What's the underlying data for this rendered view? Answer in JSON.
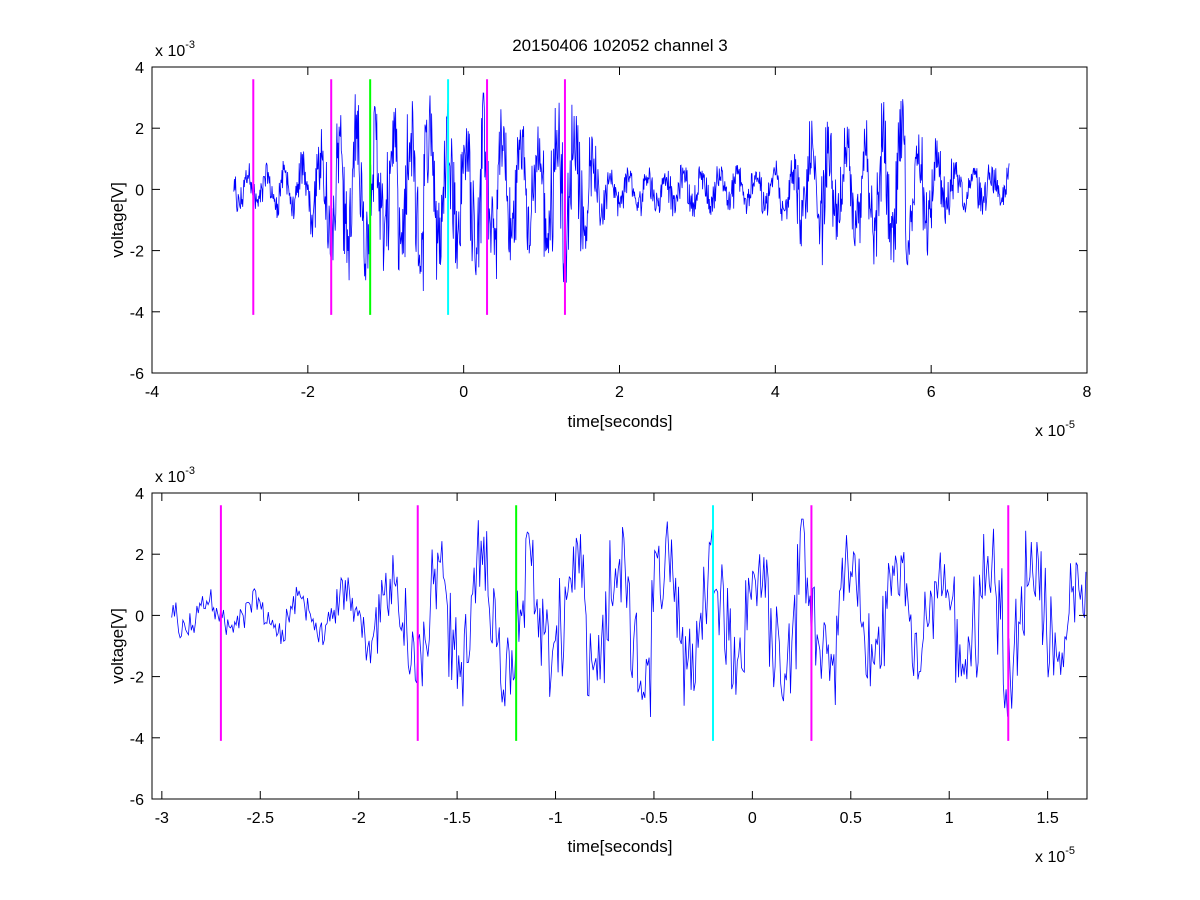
{
  "colors": {
    "signal": "#0000ff",
    "magenta": "#ff00ff",
    "green": "#00ff00",
    "cyan": "#00ffff",
    "axis": "#000000",
    "background": "#ffffff"
  },
  "chart_data": [
    {
      "type": "line",
      "title": "20150406 102052 channel 3",
      "xlabel": "time[seconds]",
      "ylabel": "voltage[V]",
      "x_exponent_label": "x 10",
      "x_exponent": "-5",
      "y_exponent_label": "x 10",
      "y_exponent": "-3",
      "xlim": [
        -4,
        8
      ],
      "ylim": [
        -6,
        4
      ],
      "xticks": [
        -4,
        -2,
        0,
        2,
        4,
        6,
        8
      ],
      "xtick_labels": [
        "-4",
        "-2",
        "0",
        "2",
        "4",
        "6",
        "8"
      ],
      "yticks": [
        -6,
        -4,
        -2,
        0,
        2,
        4
      ],
      "ytick_labels": [
        "-6",
        "-4",
        "-2",
        "0",
        "2",
        "4"
      ],
      "grid": false,
      "signal": {
        "x_range": [
          -2.95,
          7.0
        ],
        "approx_min": -3.7,
        "approx_max": 3.2,
        "note_values": "dense noisy waveform, roughly zero-mean"
      },
      "markers": [
        {
          "x": -2.7,
          "color": "magenta",
          "y_range": [
            -4.1,
            3.6
          ]
        },
        {
          "x": -1.7,
          "color": "magenta",
          "y_range": [
            -4.1,
            3.6
          ]
        },
        {
          "x": -1.2,
          "color": "green",
          "y_range": [
            -4.1,
            3.6
          ]
        },
        {
          "x": -0.2,
          "color": "cyan",
          "y_range": [
            -4.1,
            3.6
          ]
        },
        {
          "x": 0.3,
          "color": "magenta",
          "y_range": [
            -4.1,
            3.6
          ]
        },
        {
          "x": 1.3,
          "color": "magenta",
          "y_range": [
            -4.1,
            3.6
          ]
        }
      ]
    },
    {
      "type": "line",
      "title": "",
      "xlabel": "time[seconds]",
      "ylabel": "voltage[V]",
      "x_exponent_label": "x 10",
      "x_exponent": "-5",
      "y_exponent_label": "x 10",
      "y_exponent": "-3",
      "xlim": [
        -3.05,
        1.7
      ],
      "ylim": [
        -6,
        4
      ],
      "xticks": [
        -3,
        -2.5,
        -2,
        -1.5,
        -1,
        -0.5,
        0,
        0.5,
        1,
        1.5
      ],
      "xtick_labels": [
        "-3",
        "-2.5",
        "-2",
        "-1.5",
        "-1",
        "-0.5",
        "0",
        "0.5",
        "1",
        "1.5"
      ],
      "yticks": [
        -6,
        -4,
        -2,
        0,
        2,
        4
      ],
      "ytick_labels": [
        "-6",
        "-4",
        "-2",
        "0",
        "2",
        "4"
      ],
      "grid": false,
      "signal": {
        "x_range": [
          -2.95,
          1.7
        ],
        "approx_min": -3.7,
        "approx_max": 3.2,
        "note_values": "zoomed view of the same waveform"
      },
      "markers": [
        {
          "x": -2.7,
          "color": "magenta",
          "y_range": [
            -4.1,
            3.6
          ]
        },
        {
          "x": -1.7,
          "color": "magenta",
          "y_range": [
            -4.1,
            3.6
          ]
        },
        {
          "x": -1.2,
          "color": "green",
          "y_range": [
            -4.1,
            3.6
          ]
        },
        {
          "x": -0.2,
          "color": "cyan",
          "y_range": [
            -4.1,
            3.6
          ]
        },
        {
          "x": 0.3,
          "color": "magenta",
          "y_range": [
            -4.1,
            3.6
          ]
        },
        {
          "x": 1.3,
          "color": "magenta",
          "y_range": [
            -4.1,
            3.6
          ]
        }
      ]
    }
  ]
}
